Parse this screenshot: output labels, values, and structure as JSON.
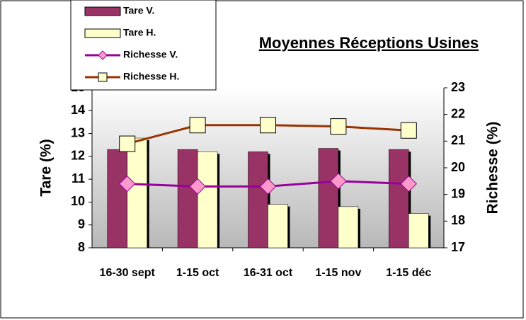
{
  "chart_data": {
    "type": "bar-line",
    "title": "Moyennes Réceptions Usines",
    "y_label": "Tare (%)",
    "y2_label": "Richesse (%)",
    "categories": [
      "16-30 sept",
      "1-15 oct",
      "16-31 oct",
      "1-15 nov",
      "1-15 déc"
    ],
    "series": [
      {
        "name": "Tare V.",
        "type": "bar",
        "color": "#993366",
        "values": [
          12.3,
          12.3,
          12.2,
          12.35,
          12.3
        ]
      },
      {
        "name": "Tare H.",
        "type": "bar",
        "color": "#ffffcc",
        "values": [
          12.8,
          12.2,
          9.9,
          9.8,
          9.5
        ]
      },
      {
        "name": "Richesse V.",
        "type": "line",
        "axis": "y2",
        "color": "#990099",
        "marker_color": "#ff99cc",
        "values": [
          19.4,
          19.3,
          19.3,
          19.5,
          19.4
        ]
      },
      {
        "name": "Richesse H.",
        "type": "line",
        "axis": "y2",
        "color": "#993300",
        "marker_color": "#ffffcc",
        "values": [
          20.9,
          21.6,
          21.6,
          21.55,
          21.4
        ]
      }
    ],
    "ylim": [
      8,
      15
    ],
    "yticks": [
      8,
      9,
      10,
      11,
      12,
      13,
      14,
      15
    ],
    "y2lim": [
      17,
      23
    ],
    "y2ticks": [
      17,
      18,
      19,
      20,
      21,
      22,
      23
    ]
  }
}
